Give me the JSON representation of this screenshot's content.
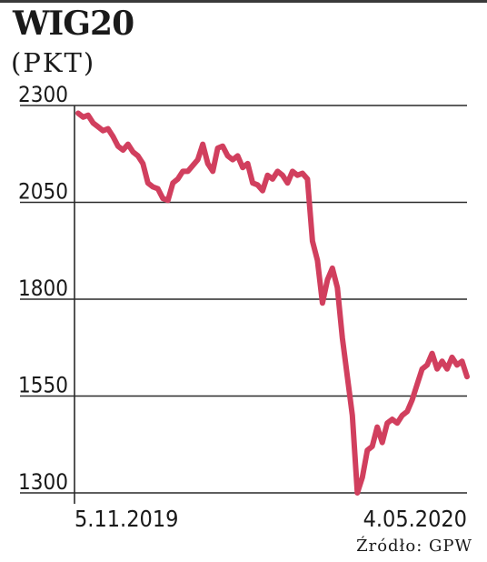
{
  "chart_data": {
    "type": "line",
    "title": "WIG20",
    "unit": "(PKT)",
    "source": "Źródło: GPW",
    "color": "#d13f5e",
    "ylim": [
      1300,
      2300
    ],
    "yticks": [
      "2300",
      "2050",
      "1800",
      "1550",
      "1300"
    ],
    "x_labels": [
      "5.11.2019",
      "4.05.2020"
    ],
    "grid": true,
    "series": [
      {
        "values": [
          2280,
          2270,
          2275,
          2255,
          2245,
          2235,
          2240,
          2220,
          2195,
          2185,
          2200,
          2180,
          2170,
          2150,
          2100,
          2090,
          2085,
          2060,
          2055,
          2100,
          2110,
          2130,
          2130,
          2145,
          2160,
          2200,
          2150,
          2130,
          2190,
          2195,
          2170,
          2160,
          2170,
          2140,
          2150,
          2100,
          2095,
          2080,
          2120,
          2110,
          2130,
          2120,
          2100,
          2130,
          2120,
          2125,
          2110,
          1950,
          1900,
          1790,
          1850,
          1880,
          1830,
          1700,
          1600,
          1500,
          1300,
          1340,
          1410,
          1420,
          1470,
          1430,
          1480,
          1490,
          1480,
          1500,
          1510,
          1540,
          1580,
          1620,
          1630,
          1660,
          1620,
          1640,
          1620,
          1650,
          1630,
          1640,
          1600
        ]
      }
    ]
  }
}
